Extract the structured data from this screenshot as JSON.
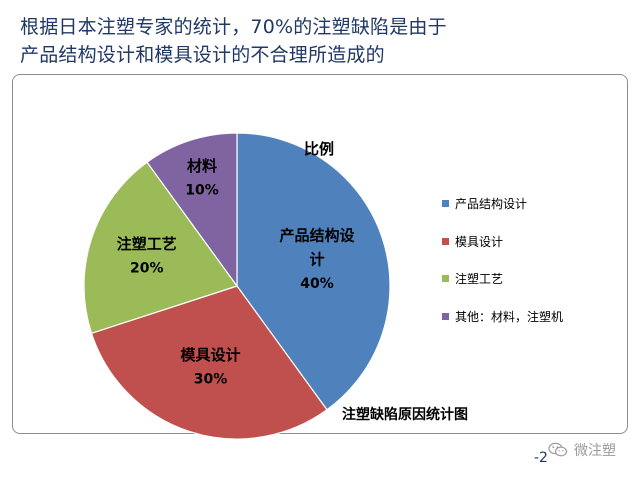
{
  "slide": {
    "title_line1": "根据日本注塑专家的统计，70%的注塑缺陷是由于",
    "title_line2": "产品结构设计和模具设计的不合理所造成的",
    "page_number": "-2",
    "watermark": "微注塑"
  },
  "chart_data": {
    "type": "pie",
    "series_name": "比例",
    "caption": "注塑缺陷原因统计图",
    "legend_position": "right",
    "slices": [
      {
        "label": "产品结构设计",
        "slice_label": "产品结构设计",
        "percent_label": "40%",
        "value": 40,
        "color": "#4f81bd",
        "legend": "产品结构设计"
      },
      {
        "label": "模具设计",
        "slice_label": "模具设计",
        "percent_label": "30%",
        "value": 30,
        "color": "#c0504d",
        "legend": "模具设计"
      },
      {
        "label": "注塑工艺",
        "slice_label": "注塑工艺",
        "percent_label": "20%",
        "value": 20,
        "color": "#9bbb59",
        "legend": "注塑工艺"
      },
      {
        "label": "材料",
        "slice_label": "材料",
        "percent_label": "10%",
        "value": 10,
        "color": "#8064a2",
        "legend": "其他：材料，注塑机"
      }
    ]
  }
}
